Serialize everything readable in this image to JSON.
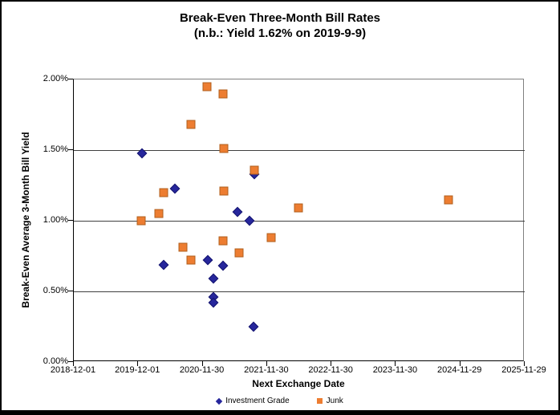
{
  "title": {
    "line1": "Break-Even Three-Month Bill Rates",
    "line2": "(n.b.: Yield 1.62% on 2019-9-9)"
  },
  "colors": {
    "investment_grade": "#26269C",
    "junk": "#ED7D31",
    "gridline": "#404040",
    "plot_border": "#808080",
    "axis": "#000000",
    "background": "#FFFFFF"
  },
  "chart_data": {
    "type": "scatter",
    "title": "Break-Even Three-Month Bill Rates",
    "subtitle": "(n.b.: Yield 1.62% on 2019-9-9)",
    "xlabel": "Next Exchange Date",
    "ylabel": "Break-Even Average 3-Month Bill Yield",
    "grid": "horizontal",
    "legend_position": "bottom-center",
    "x_axis": {
      "type": "date",
      "min": "2018-12-01",
      "max": "2025-11-29",
      "ticks": [
        "2018-12-01",
        "2019-12-01",
        "2020-11-30",
        "2021-11-30",
        "2022-11-30",
        "2023-11-30",
        "2024-11-29",
        "2025-11-29"
      ]
    },
    "y_axis": {
      "min": 0,
      "max": 2,
      "unit": "%",
      "ticks": [
        {
          "label": "0.00%",
          "value": 0
        },
        {
          "label": "0.50%",
          "value": 0.5
        },
        {
          "label": "1.00%",
          "value": 1
        },
        {
          "label": "1.50%",
          "value": 1.5
        },
        {
          "label": "2.00%",
          "value": 2
        }
      ],
      "grid_values": [
        0.5,
        1.0,
        1.5
      ]
    },
    "series": [
      {
        "name": "Investment Grade",
        "marker": "diamond",
        "color": "#26269C",
        "points": [
          {
            "x": "2019-12-23",
            "y": 1.48
          },
          {
            "x": "2020-04-23",
            "y": 0.69
          },
          {
            "x": "2020-06-26",
            "y": 1.23
          },
          {
            "x": "2020-12-29",
            "y": 0.72
          },
          {
            "x": "2021-01-30",
            "y": 0.59
          },
          {
            "x": "2021-01-30",
            "y": 0.46
          },
          {
            "x": "2021-01-30",
            "y": 0.42
          },
          {
            "x": "2021-03-27",
            "y": 0.68
          },
          {
            "x": "2021-06-16",
            "y": 1.06
          },
          {
            "x": "2021-08-23",
            "y": 1.0
          },
          {
            "x": "2021-09-16",
            "y": 0.25
          },
          {
            "x": "2021-09-19",
            "y": 1.33
          }
        ]
      },
      {
        "name": "Junk",
        "marker": "square",
        "color": "#ED7D31",
        "points": [
          {
            "x": "2019-12-18",
            "y": 1.0
          },
          {
            "x": "2020-03-27",
            "y": 1.05
          },
          {
            "x": "2020-04-23",
            "y": 1.2
          },
          {
            "x": "2020-08-11",
            "y": 0.81
          },
          {
            "x": "2020-09-25",
            "y": 1.68
          },
          {
            "x": "2020-09-25",
            "y": 0.72
          },
          {
            "x": "2020-12-26",
            "y": 1.95
          },
          {
            "x": "2021-03-27",
            "y": 1.9
          },
          {
            "x": "2021-03-27",
            "y": 0.86
          },
          {
            "x": "2021-03-30",
            "y": 1.51
          },
          {
            "x": "2021-03-30",
            "y": 1.21
          },
          {
            "x": "2021-06-25",
            "y": 0.77
          },
          {
            "x": "2021-09-19",
            "y": 1.36
          },
          {
            "x": "2021-12-24",
            "y": 0.88
          },
          {
            "x": "2022-05-27",
            "y": 1.09
          },
          {
            "x": "2024-09-24",
            "y": 1.15
          }
        ]
      }
    ]
  }
}
